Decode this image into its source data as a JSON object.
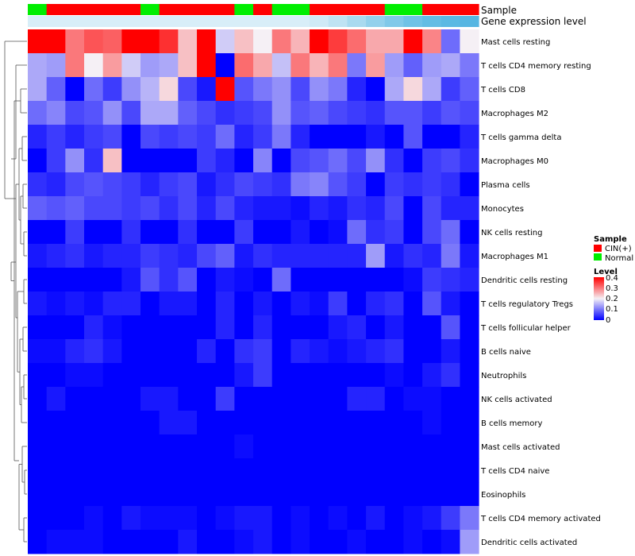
{
  "chart_data": {
    "type": "heatmap",
    "annotation_rows": [
      "Sample",
      "Gene expression level"
    ],
    "sample_groups": [
      "Normal",
      "CIN(+)",
      "CIN(+)",
      "CIN(+)",
      "CIN(+)",
      "CIN(+)",
      "Normal",
      "CIN(+)",
      "CIN(+)",
      "CIN(+)",
      "CIN(+)",
      "Normal",
      "CIN(+)",
      "Normal",
      "Normal",
      "CIN(+)",
      "CIN(+)",
      "CIN(+)",
      "CIN(+)",
      "Normal",
      "Normal",
      "CIN(+)",
      "CIN(+)",
      "CIN(+)"
    ],
    "gene_expression_colors": [
      "#d8eef8",
      "#d8eef8",
      "#d8eef8",
      "#d8eef8",
      "#d8eef8",
      "#d8eef8",
      "#d8eef8",
      "#d8eef8",
      "#d8eef8",
      "#d8eef8",
      "#d8eef8",
      "#d8eef8",
      "#d8eef8",
      "#d8eef8",
      "#d8eef8",
      "#cfeaf6",
      "#bfe3f3",
      "#a9daef",
      "#93d1ec",
      "#80c9e9",
      "#6fc2e6",
      "#63bde4",
      "#5bb9e3",
      "#56b6e2"
    ],
    "rows": [
      "Mast cells resting",
      "T cells CD4 memory resting",
      "T cells CD8",
      "Macrophages M2",
      "T cells gamma delta",
      "Macrophages M0",
      "Plasma cells",
      "Monocytes",
      "NK cells resting",
      "Macrophages M1",
      "Dendritic cells resting",
      "T cells regulatory  Tregs",
      "T cells follicular helper",
      "B cells naive",
      "Neutrophils",
      "NK cells activated",
      "B cells memory",
      "Mast cells activated",
      "T cells CD4 naive",
      "Eosinophils",
      "T cells CD4 memory activated",
      "Dendritic cells activated"
    ],
    "values": [
      [
        0.4,
        0.4,
        0.3,
        0.33,
        0.32,
        0.4,
        0.4,
        0.36,
        0.24,
        0.4,
        0.17,
        0.24,
        0.2,
        0.3,
        0.25,
        0.4,
        0.35,
        0.31,
        0.26,
        0.26,
        0.4,
        0.29,
        0.09,
        0.2
      ],
      [
        0.14,
        0.13,
        0.3,
        0.2,
        0.27,
        0.17,
        0.13,
        0.14,
        0.24,
        0.4,
        0.0,
        0.31,
        0.26,
        0.16,
        0.3,
        0.25,
        0.3,
        0.1,
        0.27,
        0.13,
        0.08,
        0.13,
        0.14,
        0.1
      ],
      [
        0.14,
        0.08,
        0.0,
        0.09,
        0.05,
        0.12,
        0.15,
        0.22,
        0.06,
        0.02,
        0.4,
        0.07,
        0.1,
        0.12,
        0.06,
        0.12,
        0.1,
        0.03,
        0.0,
        0.14,
        0.22,
        0.14,
        0.05,
        0.08
      ],
      [
        0.09,
        0.11,
        0.06,
        0.07,
        0.12,
        0.06,
        0.14,
        0.14,
        0.08,
        0.06,
        0.04,
        0.05,
        0.06,
        0.12,
        0.07,
        0.08,
        0.06,
        0.05,
        0.04,
        0.07,
        0.07,
        0.05,
        0.07,
        0.06
      ],
      [
        0.03,
        0.05,
        0.03,
        0.05,
        0.06,
        0.0,
        0.06,
        0.05,
        0.06,
        0.05,
        0.09,
        0.03,
        0.05,
        0.1,
        0.03,
        0.0,
        0.0,
        0.0,
        0.02,
        0.0,
        0.07,
        0.0,
        0.0,
        0.03
      ],
      [
        0.0,
        0.05,
        0.12,
        0.04,
        0.24,
        0.0,
        0.0,
        0.0,
        0.0,
        0.05,
        0.03,
        0.0,
        0.11,
        0.0,
        0.06,
        0.07,
        0.09,
        0.06,
        0.12,
        0.04,
        0.0,
        0.05,
        0.06,
        0.04
      ],
      [
        0.04,
        0.03,
        0.06,
        0.07,
        0.06,
        0.05,
        0.03,
        0.05,
        0.06,
        0.02,
        0.04,
        0.06,
        0.05,
        0.04,
        0.1,
        0.11,
        0.07,
        0.05,
        0.0,
        0.05,
        0.04,
        0.05,
        0.04,
        0.0
      ],
      [
        0.08,
        0.07,
        0.08,
        0.06,
        0.06,
        0.05,
        0.06,
        0.04,
        0.06,
        0.03,
        0.06,
        0.03,
        0.02,
        0.02,
        0.01,
        0.03,
        0.02,
        0.04,
        0.03,
        0.06,
        0.0,
        0.06,
        0.03,
        0.03
      ],
      [
        0.0,
        0.0,
        0.05,
        0.0,
        0.0,
        0.04,
        0.0,
        0.0,
        0.04,
        0.0,
        0.0,
        0.05,
        0.0,
        0.0,
        0.02,
        0.0,
        0.01,
        0.09,
        0.04,
        0.05,
        0.0,
        0.06,
        0.09,
        0.0
      ],
      [
        0.02,
        0.03,
        0.04,
        0.02,
        0.03,
        0.03,
        0.05,
        0.04,
        0.03,
        0.06,
        0.08,
        0.02,
        0.04,
        0.03,
        0.03,
        0.03,
        0.03,
        0.03,
        0.13,
        0.02,
        0.04,
        0.03,
        0.1,
        0.02
      ],
      [
        0.0,
        0.0,
        0.0,
        0.0,
        0.0,
        0.02,
        0.07,
        0.04,
        0.07,
        0.0,
        0.02,
        0.01,
        0.0,
        0.09,
        0.0,
        0.0,
        0.0,
        0.0,
        0.0,
        0.0,
        0.01,
        0.05,
        0.04,
        0.03
      ],
      [
        0.02,
        0.01,
        0.02,
        0.01,
        0.03,
        0.03,
        0.0,
        0.02,
        0.02,
        0.0,
        0.03,
        0.0,
        0.02,
        0.0,
        0.02,
        0.01,
        0.05,
        0.0,
        0.03,
        0.04,
        0.0,
        0.07,
        0.02,
        0.0
      ],
      [
        0.0,
        0.0,
        0.0,
        0.03,
        0.01,
        0.0,
        0.0,
        0.0,
        0.0,
        0.0,
        0.03,
        0.0,
        0.03,
        0.0,
        0.0,
        0.0,
        0.02,
        0.03,
        0.0,
        0.02,
        0.0,
        0.0,
        0.07,
        0.0
      ],
      [
        0.01,
        0.01,
        0.03,
        0.04,
        0.02,
        0.0,
        0.0,
        0.0,
        0.0,
        0.03,
        0.0,
        0.04,
        0.05,
        0.0,
        0.03,
        0.02,
        0.01,
        0.02,
        0.03,
        0.04,
        0.0,
        0.0,
        0.02,
        0.0
      ],
      [
        0.0,
        0.0,
        0.01,
        0.01,
        0.0,
        0.0,
        0.0,
        0.0,
        0.0,
        0.0,
        0.0,
        0.02,
        0.05,
        0.0,
        0.0,
        0.0,
        0.0,
        0.0,
        0.0,
        0.01,
        0.0,
        0.02,
        0.04,
        0.0
      ],
      [
        0.0,
        0.02,
        0.0,
        0.0,
        0.0,
        0.0,
        0.02,
        0.02,
        0.0,
        0.0,
        0.05,
        0.0,
        0.0,
        0.0,
        0.0,
        0.0,
        0.0,
        0.03,
        0.03,
        0.0,
        0.01,
        0.01,
        0.0,
        0.0
      ],
      [
        0.0,
        0.0,
        0.0,
        0.0,
        0.0,
        0.0,
        0.0,
        0.02,
        0.02,
        0.0,
        0.0,
        0.0,
        0.0,
        0.0,
        0.0,
        0.0,
        0.0,
        0.0,
        0.0,
        0.0,
        0.0,
        0.01,
        0.0,
        0.0
      ],
      [
        0.0,
        0.0,
        0.0,
        0.0,
        0.0,
        0.0,
        0.0,
        0.0,
        0.0,
        0.0,
        0.0,
        0.01,
        0.0,
        0.0,
        0.0,
        0.0,
        0.0,
        0.0,
        0.0,
        0.0,
        0.0,
        0.0,
        0.0,
        0.0
      ],
      [
        0.0,
        0.0,
        0.0,
        0.0,
        0.0,
        0.0,
        0.0,
        0.0,
        0.0,
        0.0,
        0.0,
        0.0,
        0.0,
        0.0,
        0.0,
        0.0,
        0.0,
        0.0,
        0.0,
        0.0,
        0.0,
        0.0,
        0.0,
        0.0
      ],
      [
        0.0,
        0.0,
        0.0,
        0.0,
        0.0,
        0.0,
        0.0,
        0.0,
        0.0,
        0.0,
        0.0,
        0.0,
        0.0,
        0.0,
        0.0,
        0.0,
        0.0,
        0.0,
        0.0,
        0.0,
        0.0,
        0.0,
        0.0,
        0.0
      ],
      [
        0.0,
        0.0,
        0.0,
        0.01,
        0.0,
        0.02,
        0.01,
        0.01,
        0.01,
        0.0,
        0.01,
        0.02,
        0.02,
        0.0,
        0.01,
        0.0,
        0.01,
        0.0,
        0.02,
        0.0,
        0.01,
        0.02,
        0.05,
        0.1
      ],
      [
        0.0,
        0.01,
        0.01,
        0.01,
        0.0,
        0.0,
        0.0,
        0.0,
        0.02,
        0.0,
        0.0,
        0.01,
        0.02,
        0.0,
        0.01,
        0.0,
        0.0,
        0.01,
        0.0,
        0.0,
        0.01,
        0.0,
        0.01,
        0.13
      ]
    ],
    "legend_sample": {
      "title": "Sample",
      "entries": [
        {
          "label": "CIN(+)",
          "color": "#ff0000"
        },
        {
          "label": "Normal",
          "color": "#00ee00"
        }
      ]
    },
    "legend_level": {
      "title": "Level",
      "ticks": [
        "0.4",
        "0.3",
        "0.2",
        "0.1",
        "0"
      ],
      "range": [
        0,
        0.4
      ]
    },
    "colors": {
      "low": "#0000ff",
      "mid": "#f5f0f5",
      "high": "#ff0000"
    }
  }
}
